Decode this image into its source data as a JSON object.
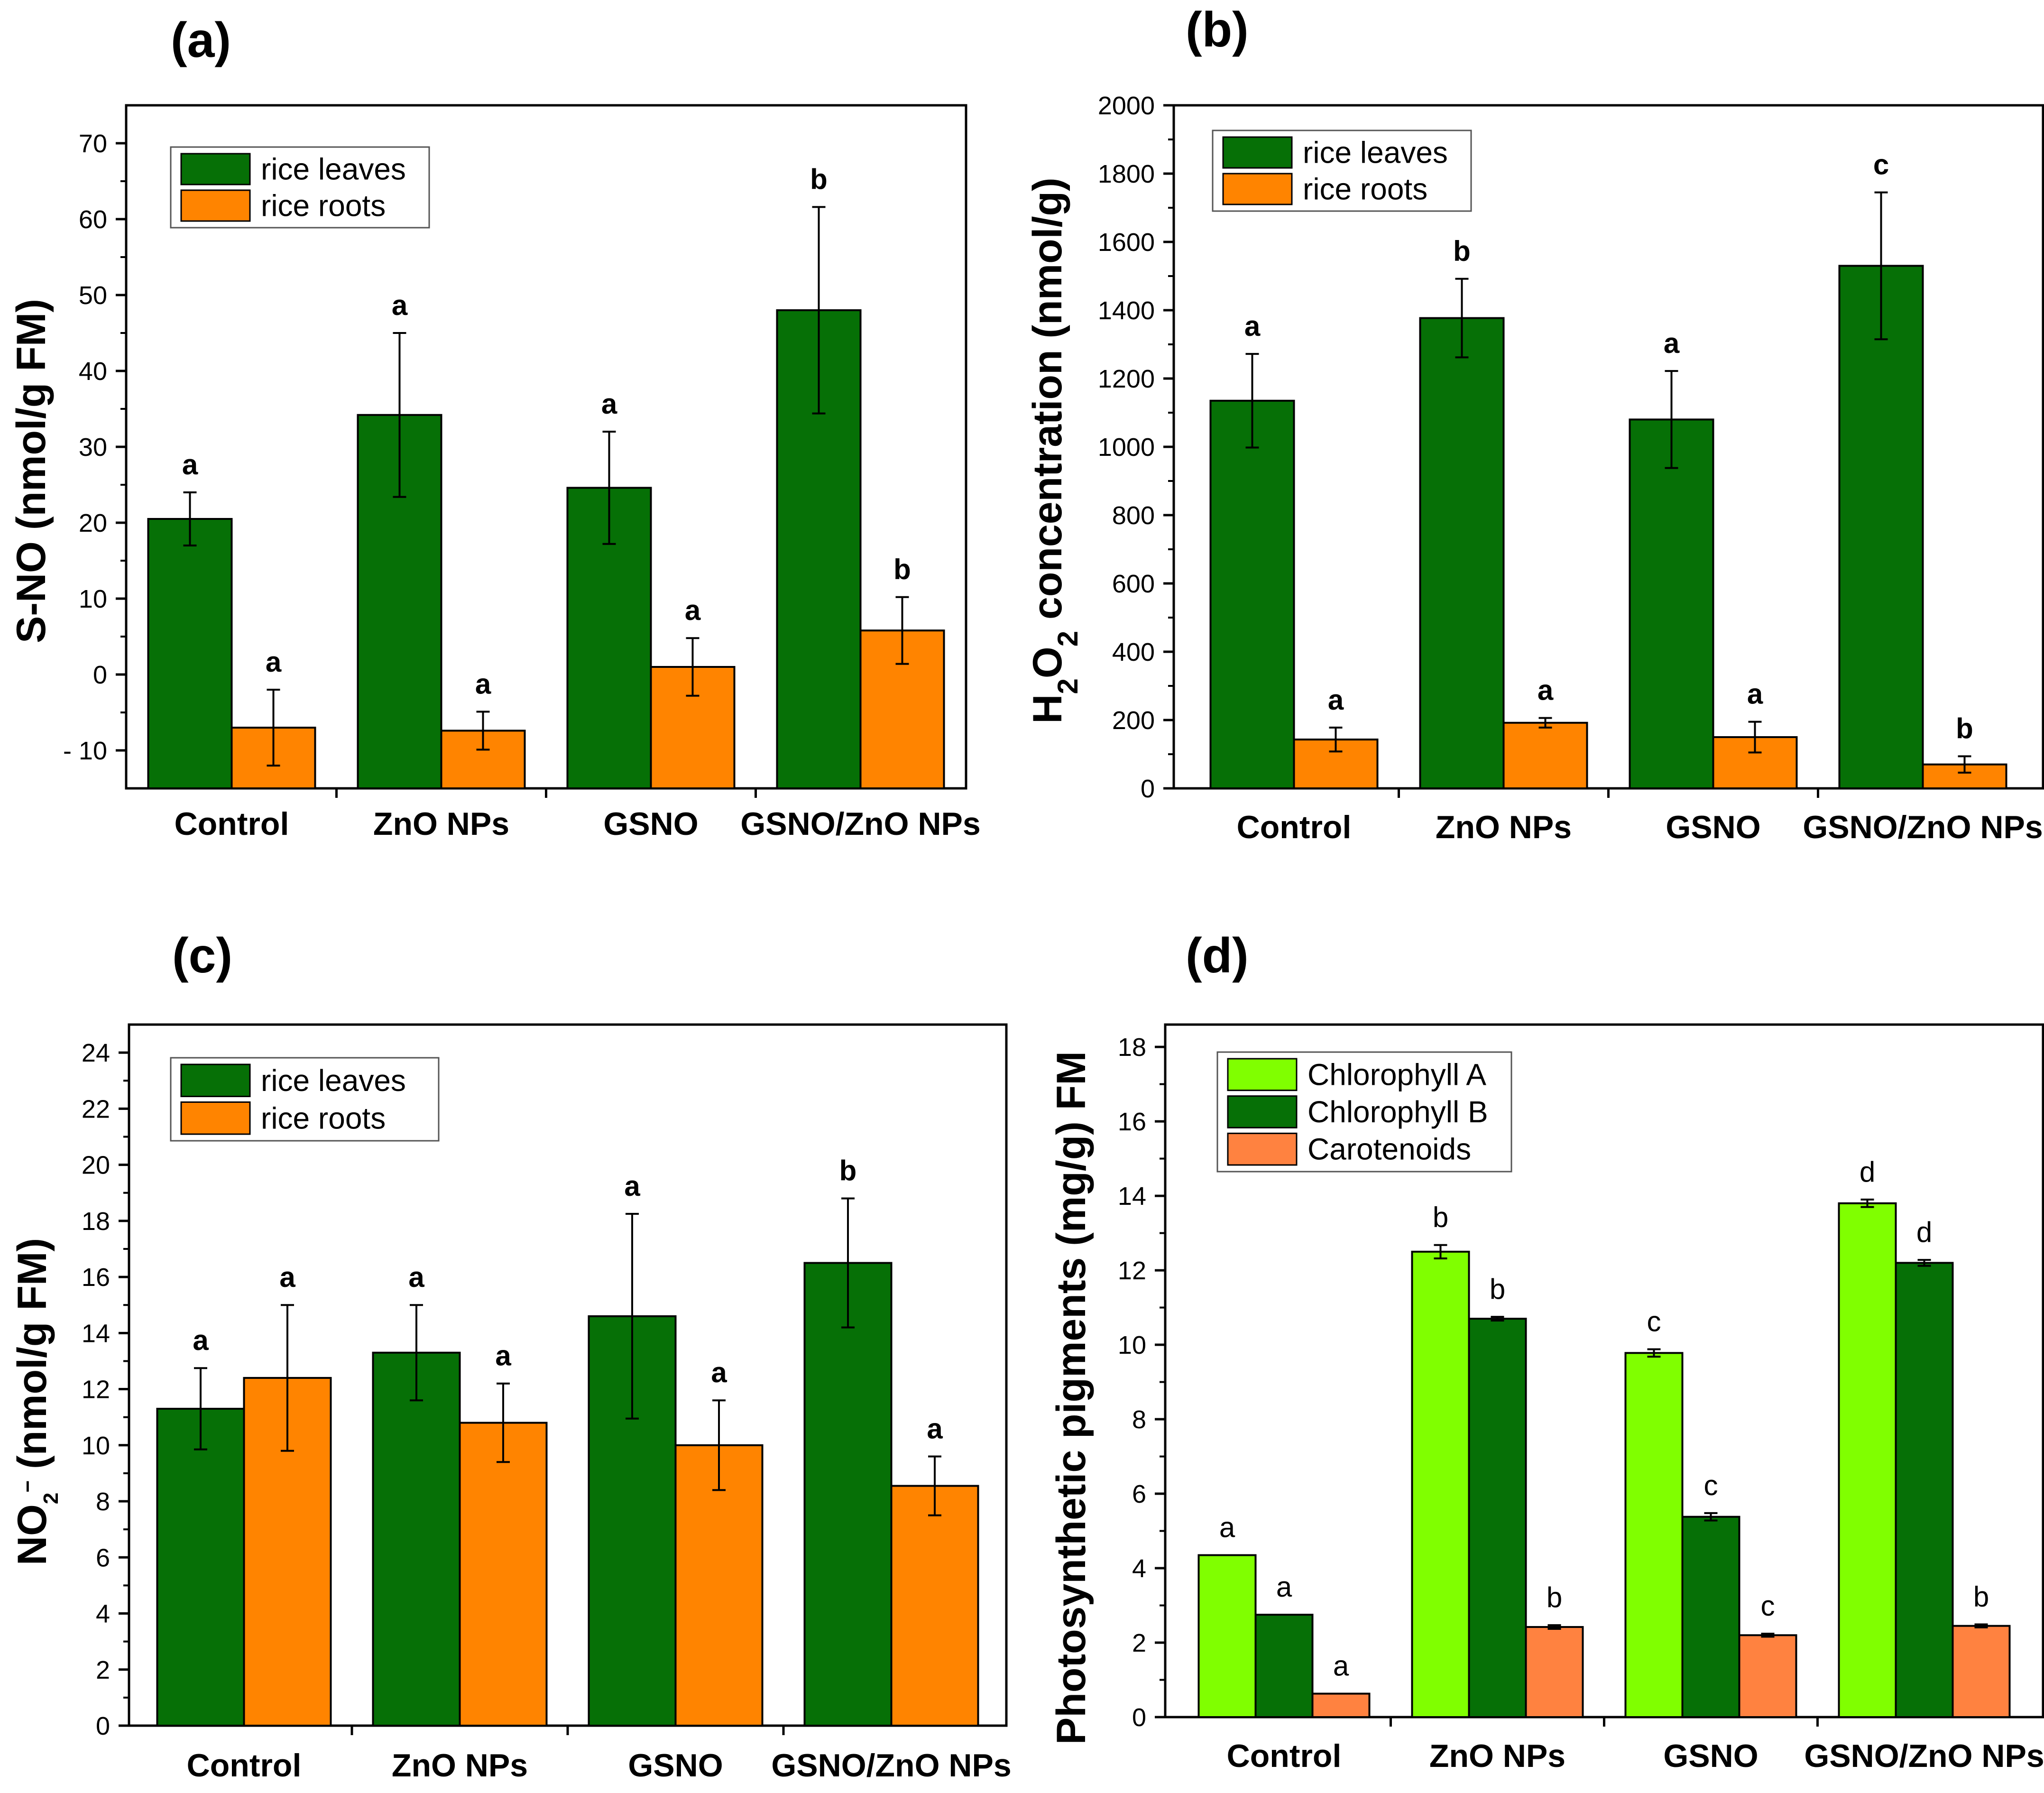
{
  "figure_colors": {
    "rice_leaves": "#067006",
    "rice_roots": "#ff8400",
    "chlorophyll_a": "#80ff00",
    "chlorophyll_b": "#067006",
    "carotenoids": "#ff8240"
  },
  "chart_data": [
    {
      "panel": "(a)",
      "type": "bar",
      "ylabel": "S-NO (nmol/g FM)",
      "ylim": [
        -15,
        75
      ],
      "yticks": [
        -10,
        0,
        10,
        20,
        30,
        40,
        50,
        60,
        70
      ],
      "ytick_labels": [
        "- 10",
        "0",
        "10",
        "20",
        "30",
        "40",
        "50",
        "60",
        "70"
      ],
      "categories": [
        "Control",
        "ZnO NPs",
        "GSNO",
        "GSNO/ZnO NPs"
      ],
      "series": [
        {
          "name": "rice leaves",
          "color": "#067006",
          "values": [
            20.5,
            34.2,
            24.6,
            48.0
          ],
          "errors": [
            3.5,
            10.8,
            7.4,
            13.6
          ],
          "sig": [
            "a",
            "a",
            "a",
            "b"
          ]
        },
        {
          "name": "rice roots",
          "color": "#ff8400",
          "values": [
            -7.0,
            -7.4,
            1.0,
            5.8
          ],
          "errors": [
            5.0,
            2.5,
            3.8,
            4.4
          ],
          "sig": [
            "a",
            "a",
            "a",
            "b"
          ]
        }
      ],
      "legend": [
        "rice leaves",
        "rice roots"
      ],
      "legend_position": "top-left"
    },
    {
      "panel": "(b)",
      "type": "bar",
      "ylabel": "H2O2 concentration (nmol/g)",
      "ylabel_parts": [
        "H",
        "2",
        "O",
        "2",
        " concentration (nmol/g)"
      ],
      "ylim": [
        0,
        2000
      ],
      "yticks": [
        0,
        200,
        400,
        600,
        800,
        1000,
        1200,
        1400,
        1600,
        1800,
        2000
      ],
      "ytick_labels": [
        "0",
        "200",
        "400",
        "600",
        "800",
        "1000",
        "1200",
        "1400",
        "1600",
        "1800",
        "2000"
      ],
      "categories": [
        "Control",
        "ZnO NPs",
        "GSNO",
        "GSNO/ZnO NPs"
      ],
      "series": [
        {
          "name": "rice leaves",
          "color": "#067006",
          "values": [
            1135,
            1377,
            1080,
            1530
          ],
          "errors": [
            137,
            115,
            142,
            215
          ],
          "sig": [
            "a",
            "b",
            "a",
            "c"
          ]
        },
        {
          "name": "rice roots",
          "color": "#ff8400",
          "values": [
            143,
            192,
            150,
            70
          ],
          "errors": [
            35,
            14,
            45,
            24
          ],
          "sig": [
            "a",
            "a",
            "a",
            "b"
          ]
        }
      ],
      "legend": [
        "rice leaves",
        "rice roots"
      ],
      "legend_position": "top-left"
    },
    {
      "panel": "(c)",
      "type": "bar",
      "ylabel": "NO2− (nmol/g FM)",
      "ylabel_parts": [
        "NO",
        "2",
        "−",
        " (nmol/g FM)"
      ],
      "ylim": [
        0,
        25
      ],
      "yticks": [
        0,
        2,
        4,
        6,
        8,
        10,
        12,
        14,
        16,
        18,
        20,
        22,
        24
      ],
      "ytick_labels": [
        "0",
        "2",
        "4",
        "6",
        "8",
        "10",
        "12",
        "14",
        "16",
        "18",
        "20",
        "22",
        "24"
      ],
      "categories": [
        "Control",
        "ZnO NPs",
        "GSNO",
        "GSNO/ZnO NPs"
      ],
      "series": [
        {
          "name": "rice leaves",
          "color": "#067006",
          "values": [
            11.3,
            13.3,
            14.6,
            16.5
          ],
          "errors": [
            1.45,
            1.7,
            3.65,
            2.3
          ],
          "sig": [
            "a",
            "a",
            "a",
            "b"
          ]
        },
        {
          "name": "rice roots",
          "color": "#ff8400",
          "values": [
            12.4,
            10.8,
            10.0,
            8.55
          ],
          "errors": [
            2.6,
            1.4,
            1.6,
            1.05
          ],
          "sig": [
            "a",
            "a",
            "a",
            "a"
          ]
        }
      ],
      "legend": [
        "rice leaves",
        "rice roots"
      ],
      "legend_position": "top-left"
    },
    {
      "panel": "(d)",
      "type": "bar",
      "ylabel": "Photosynthetic pigments (mg/g) FM",
      "ylim": [
        0,
        18.6
      ],
      "yticks": [
        0,
        2,
        4,
        6,
        8,
        10,
        12,
        14,
        16,
        18
      ],
      "ytick_labels": [
        "0",
        "2",
        "4",
        "6",
        "8",
        "10",
        "12",
        "14",
        "16",
        "18"
      ],
      "categories": [
        "Control",
        "ZnO NPs",
        "GSNO",
        "GSNO/ZnO NPs"
      ],
      "series": [
        {
          "name": "Chlorophyll A",
          "color": "#80ff00",
          "values": [
            4.35,
            12.5,
            9.78,
            13.8
          ],
          "errors": [
            0,
            0.18,
            0.1,
            0.1
          ],
          "sig": [
            "a",
            "b",
            "c",
            "d"
          ]
        },
        {
          "name": "Chlorophyll B",
          "color": "#067006",
          "values": [
            2.75,
            10.7,
            5.38,
            12.2
          ],
          "errors": [
            0,
            0.05,
            0.1,
            0.08
          ],
          "sig": [
            "a",
            "b",
            "c",
            "d"
          ]
        },
        {
          "name": "Carotenoids",
          "color": "#ff8240",
          "values": [
            0.63,
            2.42,
            2.2,
            2.45
          ],
          "errors": [
            0,
            0.05,
            0.04,
            0.04
          ],
          "sig": [
            "a",
            "b",
            "c",
            "b"
          ]
        }
      ],
      "legend": [
        "Chlorophyll A",
        "Chlorophyll B",
        "Carotenoids"
      ],
      "legend_position": "top-left"
    }
  ]
}
